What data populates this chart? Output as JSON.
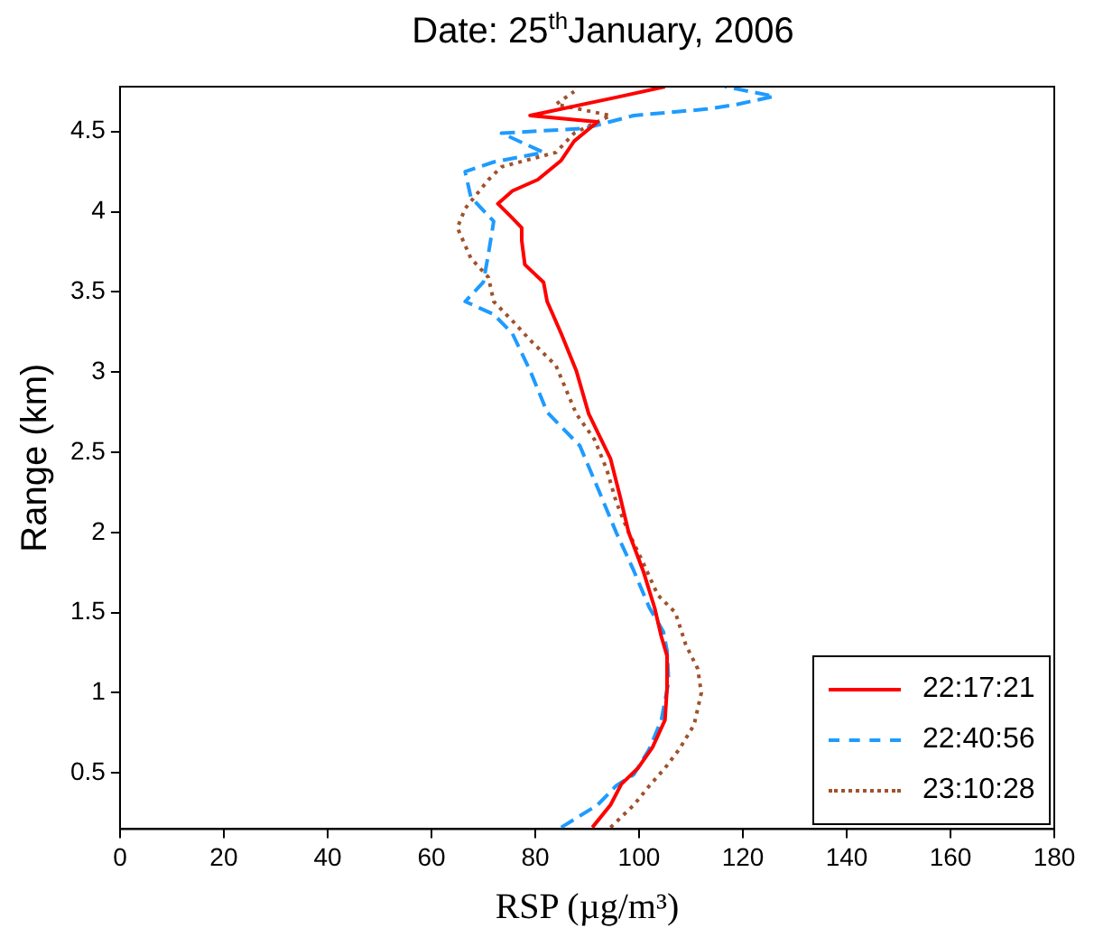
{
  "chart_data": {
    "type": "line",
    "title": "Date: 25$^{th}$January, 2006",
    "xlabel": "RSP (µg/m³)",
    "ylabel": "Range (km)",
    "xlim": [
      0,
      180
    ],
    "xticks": [
      0,
      20,
      40,
      60,
      80,
      100,
      120,
      140,
      160,
      180
    ],
    "ylim": [
      0.15,
      4.78
    ],
    "yticks": [
      0.5,
      1,
      1.5,
      2,
      2.5,
      3,
      3.5,
      4,
      4.5
    ],
    "grid": false,
    "legend": "bottom right",
    "marker": "none",
    "series": [
      {
        "name": "22:17:21",
        "color": "#ff0000",
        "line_style": "solid",
        "x": [
          91,
          94.5,
          96.6,
          99.8,
          102.6,
          105,
          105.4,
          105.4,
          104.3,
          103,
          100.8,
          98,
          96.3,
          94.5,
          90.3,
          87.9,
          85,
          82.3,
          81.6,
          78,
          77.4,
          77.4,
          75.3,
          72.8,
          75.6,
          80.5,
          85,
          87.5,
          92,
          79,
          96.6,
          105
        ],
        "values": [
          0.16,
          0.3,
          0.43,
          0.53,
          0.66,
          0.83,
          1.03,
          1.23,
          1.35,
          1.53,
          1.76,
          2,
          2.23,
          2.46,
          2.74,
          3.01,
          3.24,
          3.44,
          3.56,
          3.67,
          3.82,
          3.9,
          3.97,
          4.05,
          4.13,
          4.2,
          4.32,
          4.44,
          4.56,
          4.6,
          4.72,
          4.78
        ]
      },
      {
        "name": "22:40:56",
        "color": "#1e9bff",
        "line_style": "dashed",
        "x": [
          85,
          92,
          95.6,
          99,
          102,
          104.3,
          105.7,
          105.4,
          104.7,
          102,
          99,
          95.6,
          92,
          88.6,
          82.3,
          79,
          75.6,
          72,
          66.5,
          70,
          71,
          72,
          67.6,
          66.5,
          72,
          81.6,
          73.5,
          89.6,
          99,
          113,
          119,
          126,
          116.6
        ],
        "values": [
          0.16,
          0.3,
          0.42,
          0.49,
          0.65,
          0.83,
          1.07,
          1.26,
          1.38,
          1.53,
          1.76,
          2,
          2.28,
          2.54,
          2.75,
          3.01,
          3.24,
          3.36,
          3.44,
          3.56,
          3.74,
          3.94,
          4.09,
          4.25,
          4.31,
          4.37,
          4.49,
          4.52,
          4.6,
          4.64,
          4.67,
          4.72,
          4.78
        ]
      },
      {
        "name": "23:10:28",
        "color": "#a0522d",
        "line_style": "dotted",
        "x": [
          94.5,
          99,
          102,
          105,
          107.8,
          110.6,
          112,
          111.3,
          109,
          107,
          103.6,
          100.8,
          98,
          95.6,
          93.8,
          91.4,
          87.9,
          84,
          79,
          75.6,
          72,
          71,
          67.6,
          65,
          66.5,
          71,
          73.5,
          84,
          87.5,
          94.5,
          84,
          87.5
        ],
        "values": [
          0.16,
          0.3,
          0.42,
          0.53,
          0.65,
          0.8,
          1,
          1.15,
          1.3,
          1.5,
          1.61,
          1.81,
          2,
          2.19,
          2.39,
          2.58,
          2.74,
          3.04,
          3.2,
          3.32,
          3.44,
          3.59,
          3.71,
          3.9,
          4.02,
          4.2,
          4.28,
          4.37,
          4.49,
          4.6,
          4.67,
          4.75
        ]
      }
    ]
  }
}
